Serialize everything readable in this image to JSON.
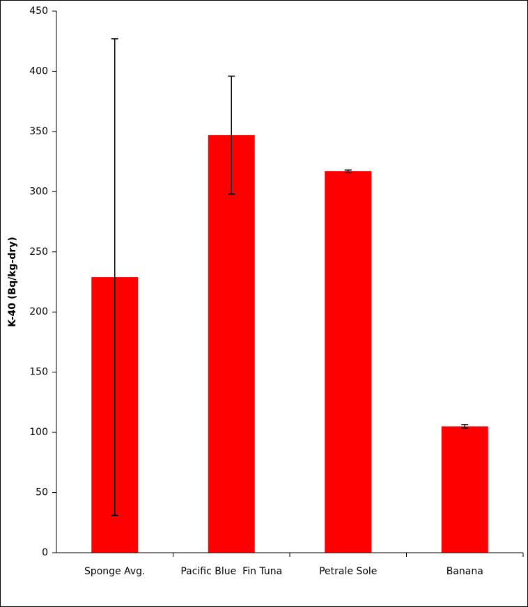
{
  "chart_data": {
    "type": "bar",
    "y_label": "K-40 (Bq/kg-dry)",
    "categories": [
      "Sponge Avg.",
      "Pacific Blue  Fin Tuna",
      "Petrale Sole",
      "Banana"
    ],
    "values": [
      229,
      347,
      317,
      105
    ],
    "errors": [
      198,
      49,
      1,
      1.5
    ],
    "color": "#ff0000",
    "ylim": [
      0,
      450
    ],
    "yticks": [
      0,
      50,
      100,
      150,
      200,
      250,
      300,
      350,
      400,
      450
    ]
  }
}
